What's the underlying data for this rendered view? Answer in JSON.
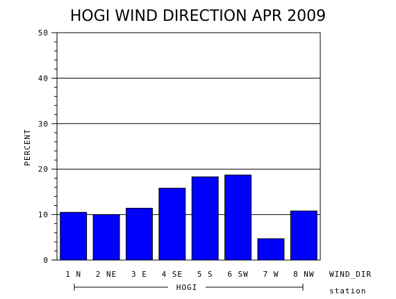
{
  "chart_data": {
    "type": "bar",
    "title": "HOGI WIND DIRECTION APR 2009",
    "ylabel": "PERCENT",
    "xlabel": "WIND_DIR",
    "group_label": "HOGI",
    "group_axis_label": "station",
    "categories": [
      "1 N",
      "2 NE",
      "3 E",
      "4 SE",
      "5 S",
      "6 SW",
      "7 W",
      "8 NW"
    ],
    "values": [
      10.5,
      10.0,
      11.4,
      15.8,
      18.3,
      18.7,
      4.7,
      10.8
    ],
    "ylim": [
      0,
      50
    ],
    "yticks": [
      "0",
      "10",
      "20",
      "30",
      "40",
      "50"
    ],
    "grid": true,
    "bar_color": "#0000FF",
    "legend": "none"
  }
}
